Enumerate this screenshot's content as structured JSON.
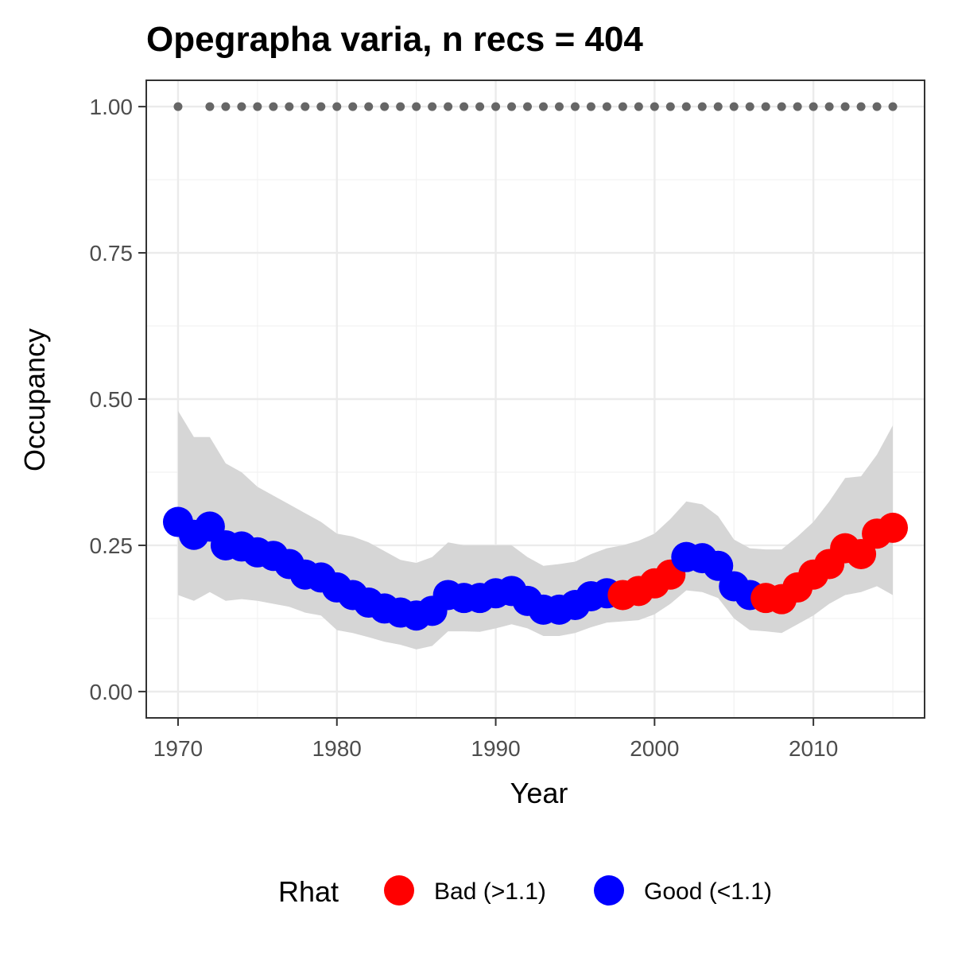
{
  "chart_data": {
    "type": "line",
    "title": "Opegrapha varia, n recs = 404",
    "xlabel": "Year",
    "ylabel": "Occupancy",
    "xlim": [
      1968,
      2017
    ],
    "ylim": [
      -0.045,
      1.045
    ],
    "x_ticks": [
      1970,
      1980,
      1990,
      2000,
      2010
    ],
    "x_tick_labels": [
      "1970",
      "1980",
      "1990",
      "2000",
      "2010"
    ],
    "y_ticks": [
      0,
      0.25,
      0.5,
      0.75,
      1.0
    ],
    "y_tick_labels": [
      "0.00",
      "0.25",
      "0.50",
      "0.75",
      "1.00"
    ],
    "grid": true,
    "legend": {
      "title": "Rhat",
      "position": "bottom",
      "entries": [
        {
          "label": "Bad (>1.1)",
          "color": "#FF0000"
        },
        {
          "label": "Good (<1.1)",
          "color": "#0000FF"
        }
      ]
    },
    "colors": {
      "bad": "#FF0000",
      "good": "#0000FF",
      "ribbon": "#D6D6D6",
      "record_dots": "#666666"
    },
    "series": [
      {
        "x": [
          1970,
          1971,
          1972,
          1973,
          1974,
          1975,
          1976,
          1977,
          1978,
          1979,
          1980,
          1981,
          1982,
          1983,
          1984,
          1985,
          1986,
          1987,
          1988,
          1989,
          1990,
          1991,
          1992,
          1993,
          1994,
          1995,
          1996,
          1997,
          1998,
          1999,
          2000,
          2001,
          2002,
          2003,
          2004,
          2005,
          2006,
          2007,
          2008,
          2009,
          2010,
          2011,
          2012,
          2013,
          2014,
          2015
        ],
        "y": [
          0.29,
          0.268,
          0.282,
          0.25,
          0.248,
          0.238,
          0.232,
          0.218,
          0.2,
          0.195,
          0.178,
          0.165,
          0.152,
          0.142,
          0.135,
          0.13,
          0.138,
          0.165,
          0.16,
          0.16,
          0.168,
          0.172,
          0.155,
          0.14,
          0.14,
          0.148,
          0.163,
          0.168,
          0.165,
          0.172,
          0.185,
          0.2,
          0.23,
          0.228,
          0.215,
          0.18,
          0.165,
          0.16,
          0.158,
          0.178,
          0.2,
          0.218,
          0.245,
          0.235,
          0.27,
          0.28
        ],
        "lower": [
          0.165,
          0.155,
          0.17,
          0.155,
          0.158,
          0.155,
          0.15,
          0.145,
          0.135,
          0.13,
          0.105,
          0.1,
          0.093,
          0.085,
          0.08,
          0.072,
          0.078,
          0.103,
          0.103,
          0.102,
          0.108,
          0.115,
          0.108,
          0.095,
          0.095,
          0.1,
          0.11,
          0.118,
          0.12,
          0.122,
          0.132,
          0.15,
          0.173,
          0.17,
          0.16,
          0.125,
          0.105,
          0.103,
          0.1,
          0.115,
          0.13,
          0.15,
          0.165,
          0.17,
          0.18,
          0.165
        ],
        "upper": [
          0.48,
          0.435,
          0.435,
          0.39,
          0.375,
          0.35,
          0.335,
          0.32,
          0.305,
          0.29,
          0.27,
          0.265,
          0.255,
          0.24,
          0.225,
          0.22,
          0.23,
          0.255,
          0.25,
          0.25,
          0.25,
          0.25,
          0.23,
          0.215,
          0.218,
          0.222,
          0.235,
          0.245,
          0.25,
          0.258,
          0.27,
          0.295,
          0.325,
          0.32,
          0.3,
          0.26,
          0.245,
          0.243,
          0.243,
          0.265,
          0.29,
          0.325,
          0.365,
          0.368,
          0.405,
          0.455
        ],
        "rhat": [
          "good",
          "good",
          "good",
          "good",
          "good",
          "good",
          "good",
          "good",
          "good",
          "good",
          "good",
          "good",
          "good",
          "good",
          "good",
          "good",
          "good",
          "good",
          "good",
          "good",
          "good",
          "good",
          "good",
          "good",
          "good",
          "good",
          "good",
          "good",
          "bad",
          "bad",
          "bad",
          "bad",
          "good",
          "good",
          "good",
          "good",
          "good",
          "bad",
          "bad",
          "bad",
          "bad",
          "bad",
          "bad",
          "bad",
          "bad",
          "bad"
        ]
      }
    ],
    "record_years": [
      1970,
      1972,
      1973,
      1974,
      1975,
      1976,
      1977,
      1978,
      1979,
      1980,
      1981,
      1982,
      1983,
      1984,
      1985,
      1986,
      1987,
      1988,
      1989,
      1990,
      1991,
      1992,
      1993,
      1994,
      1995,
      1996,
      1997,
      1998,
      1999,
      2000,
      2001,
      2002,
      2003,
      2004,
      2005,
      2006,
      2007,
      2008,
      2009,
      2010,
      2011,
      2012,
      2013,
      2014,
      2015
    ],
    "record_level": 1.0
  }
}
